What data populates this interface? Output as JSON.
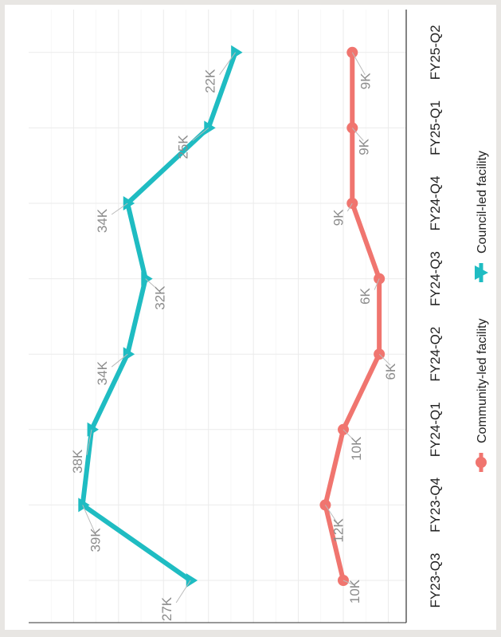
{
  "chart_data": {
    "type": "line",
    "orientation": "rotated 90 degrees clockwise",
    "categories": [
      "FY23-Q3",
      "FY23-Q4",
      "FY24-Q1",
      "FY24-Q2",
      "FY24-Q3",
      "FY24-Q4",
      "FY25-Q1",
      "FY25-Q2"
    ],
    "series": [
      {
        "name": "Community-led facility",
        "marker": "circle",
        "color": "#f0756f",
        "values": [
          10000,
          12000,
          10000,
          6000,
          6000,
          9000,
          9000,
          9000
        ],
        "labels": [
          "10K",
          "12K",
          "10K",
          "6K",
          "6K",
          "9K",
          "9K",
          "9K"
        ]
      },
      {
        "name": "Council-led facility",
        "marker": "triangle",
        "color": "#1fbcc2",
        "values": [
          27000,
          39000,
          38000,
          34000,
          32000,
          34000,
          25000,
          22000
        ],
        "labels": [
          "27K",
          "39K",
          "38K",
          "34K",
          "32K",
          "34K",
          "25K",
          "22K"
        ]
      }
    ],
    "ylim": [
      3000,
      45000
    ],
    "grid": true,
    "legend_position": "bottom",
    "xlabel": "",
    "ylabel": ""
  }
}
